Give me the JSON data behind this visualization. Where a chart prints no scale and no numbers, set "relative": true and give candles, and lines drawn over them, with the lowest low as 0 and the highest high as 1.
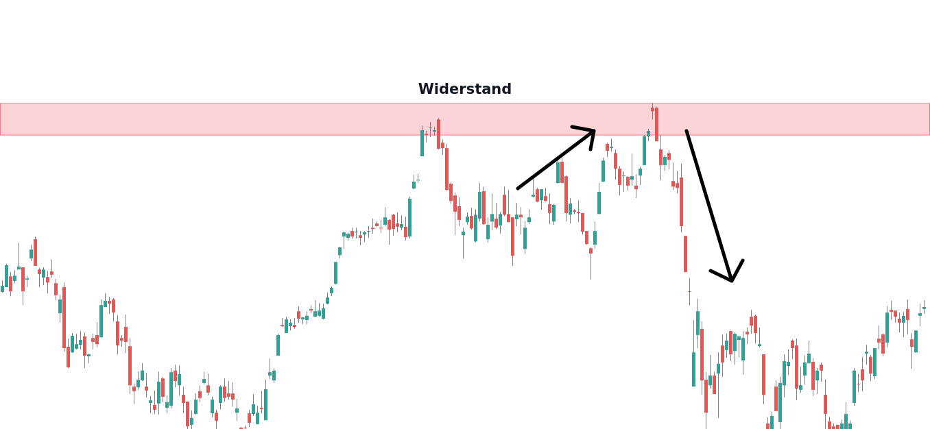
{
  "chart_data": {
    "type": "candlestick",
    "relative": true,
    "categories": [
      null,
      null,
      null,
      null,
      null,
      null,
      null,
      null,
      null,
      null,
      null,
      null,
      null,
      null,
      null,
      null,
      null,
      null,
      null,
      null,
      null,
      null,
      null,
      null,
      null,
      null,
      null,
      null,
      null,
      null,
      null,
      null,
      null,
      null,
      null,
      null,
      null,
      null,
      null,
      null,
      null,
      null,
      null,
      null,
      null,
      null,
      null,
      null,
      null,
      null,
      null,
      null,
      null,
      null,
      null,
      null,
      null,
      null,
      null,
      null,
      null,
      null,
      null,
      null,
      null,
      null,
      null,
      null,
      null,
      null,
      null,
      null,
      null,
      null,
      null,
      null,
      null,
      null,
      null,
      null,
      null,
      null,
      null,
      null,
      null,
      null,
      null,
      null,
      null,
      null,
      null,
      null,
      null,
      null,
      null,
      null,
      null,
      null,
      null,
      null,
      null,
      null,
      null,
      null,
      null,
      null,
      null,
      null,
      null,
      null,
      null,
      null,
      null,
      null,
      null,
      null,
      null,
      null,
      null,
      null,
      null,
      null,
      null,
      null,
      null,
      null,
      null,
      null,
      null,
      null,
      null,
      null,
      null,
      null,
      null,
      null,
      null,
      null,
      null,
      null,
      null,
      null,
      null,
      null,
      null,
      null,
      null,
      null,
      null,
      null,
      null,
      null,
      null,
      null,
      null,
      null,
      null,
      null,
      null,
      null,
      null,
      null,
      null,
      null,
      null,
      null,
      null,
      null,
      null,
      null,
      null,
      null,
      null,
      null,
      null,
      null,
      null,
      null,
      null,
      null,
      null,
      null,
      null,
      null,
      null,
      null,
      null,
      null,
      null,
      null,
      null,
      null,
      null,
      null,
      null,
      null,
      null,
      null,
      null,
      null,
      null,
      null,
      null,
      null,
      null,
      null,
      null,
      null,
      null,
      null,
      null,
      null,
      null,
      null,
      null,
      null,
      null,
      null,
      null,
      null,
      null,
      null,
      null,
      null,
      null
    ],
    "ohlc": [
      [
        0.42,
        0.456,
        0.418,
        0.439
      ],
      [
        0.435,
        0.506,
        0.435,
        0.502
      ],
      [
        0.468,
        0.481,
        0.407,
        0.422
      ],
      [
        0.454,
        0.487,
        0.447,
        0.47
      ],
      [
        0.489,
        0.571,
        0.489,
        0.498
      ],
      [
        0.496,
        0.496,
        0.38,
        0.422
      ],
      [
        0.458,
        0.47,
        0.435,
        0.462
      ],
      [
        0.523,
        0.565,
        0.515,
        0.55
      ],
      [
        0.582,
        0.59,
        0.5,
        0.5
      ],
      [
        0.489,
        0.494,
        0.435,
        0.475
      ],
      [
        0.464,
        0.496,
        0.441,
        0.489
      ],
      [
        0.466,
        0.485,
        0.416,
        0.449
      ],
      [
        0.483,
        0.519,
        0.464,
        0.473
      ],
      [
        0.447,
        0.46,
        0.395,
        0.41
      ],
      [
        0.355,
        0.412,
        0.326,
        0.397
      ],
      [
        0.435,
        0.449,
        0.237,
        0.248
      ],
      [
        0.252,
        0.277,
        0.187,
        0.189
      ],
      [
        0.235,
        0.294,
        0.233,
        0.286
      ],
      [
        0.246,
        0.292,
        0.244,
        0.26
      ],
      [
        0.258,
        0.3,
        0.244,
        0.273
      ],
      [
        0.284,
        0.296,
        0.187,
        0.225
      ],
      [
        0.223,
        0.231,
        0.202,
        0.229
      ],
      [
        0.279,
        0.292,
        0.244,
        0.267
      ],
      [
        0.288,
        0.328,
        0.25,
        0.26
      ],
      [
        0.281,
        0.397,
        0.281,
        0.38
      ],
      [
        0.374,
        0.416,
        0.374,
        0.393
      ],
      [
        0.393,
        0.405,
        0.353,
        0.384
      ],
      [
        0.397,
        0.401,
        0.33,
        0.357
      ],
      [
        0.33,
        0.349,
        0.229,
        0.256
      ],
      [
        0.279,
        0.288,
        0.252,
        0.271
      ],
      [
        0.313,
        0.351,
        0.233,
        0.267
      ],
      [
        0.254,
        0.279,
        0.107,
        0.134
      ],
      [
        0.13,
        0.139,
        0.076,
        0.116
      ],
      [
        0.128,
        0.176,
        0.12,
        0.151
      ],
      [
        0.149,
        0.202,
        0.147,
        0.179
      ],
      [
        0.13,
        0.172,
        0.097,
        0.118
      ],
      [
        0.08,
        0.101,
        0.048,
        0.088
      ],
      [
        0.074,
        0.118,
        0.046,
        0.059
      ],
      [
        0.078,
        0.176,
        0.044,
        0.145
      ],
      [
        0.155,
        0.16,
        0.082,
        0.099
      ],
      [
        0.065,
        0.103,
        0.048,
        0.082
      ],
      [
        0.071,
        0.187,
        0.063,
        0.174
      ],
      [
        0.179,
        0.197,
        0.128,
        0.147
      ],
      [
        0.134,
        0.195,
        0.103,
        0.168
      ],
      [
        0.105,
        0.13,
        0.048,
        0.08
      ],
      [
        0.084,
        0.084,
        0,
        0.008
      ],
      [
        0.013,
        0.057,
        0,
        0.034
      ],
      [
        0.046,
        0.109,
        0.044,
        0.09
      ],
      [
        0.116,
        0.134,
        0.082,
        0.095
      ],
      [
        0.141,
        0.176,
        0.137,
        0.153
      ],
      [
        0.134,
        0.17,
        0.103,
        0.111
      ],
      [
        0.048,
        0.099,
        0.036,
        0.09
      ],
      [
        0.05,
        0.059,
        0,
        0.025
      ],
      [
        0.08,
        0.134,
        0.061,
        0.13
      ],
      [
        0.13,
        0.155,
        0.084,
        0.095
      ],
      [
        0.109,
        0.147,
        0.09,
        0.099
      ],
      [
        0.109,
        0.143,
        0.069,
        0.09
      ],
      [
        0.05,
        0.092,
        0.025,
        0.063
      ],
      [
        0.004,
        0.006,
        0,
        0
      ],
      [
        0.004,
        0.011,
        0,
        0.002
      ],
      [
        0.048,
        0.059,
        0.006,
        0.019
      ],
      [
        0.046,
        0.107,
        0.04,
        0.076
      ],
      [
        0.015,
        0.071,
        0.015,
        0.05
      ],
      [
        0.065,
        0.116,
        0.048,
        0.061
      ],
      [
        0.027,
        0.151,
        0.027,
        0.122
      ],
      [
        0.164,
        0.216,
        0.153,
        0.174
      ],
      [
        0.149,
        0.187,
        0.141,
        0.179
      ],
      [
        0.225,
        0.292,
        0.225,
        0.288
      ],
      [
        0.319,
        0.34,
        0.313,
        0.315
      ],
      [
        0.294,
        0.344,
        0.294,
        0.336
      ],
      [
        0.315,
        0.336,
        0.302,
        0.326
      ],
      [
        0.319,
        0.34,
        0.307,
        0.313
      ],
      [
        0.361,
        0.376,
        0.326,
        0.338
      ],
      [
        0.336,
        0.344,
        0.321,
        0.342
      ],
      [
        0.334,
        0.361,
        0.321,
        0.347
      ],
      [
        0.368,
        0.38,
        0.355,
        0.363
      ],
      [
        0.344,
        0.395,
        0.344,
        0.361
      ],
      [
        0.347,
        0.386,
        0.344,
        0.363
      ],
      [
        0.338,
        0.384,
        0.336,
        0.37
      ],
      [
        0.384,
        0.418,
        0.382,
        0.403
      ],
      [
        0.416,
        0.437,
        0.407,
        0.433
      ],
      [
        0.445,
        0.512,
        0.443,
        0.512
      ],
      [
        0.533,
        0.559,
        0.523,
        0.557
      ],
      [
        0.59,
        0.605,
        0.552,
        0.603
      ],
      [
        0.586,
        0.601,
        0.578,
        0.599
      ],
      [
        0.607,
        0.617,
        0.584,
        0.59
      ],
      [
        0.603,
        0.617,
        0.584,
        0.605
      ],
      [
        0.594,
        0.607,
        0.563,
        0.586
      ],
      [
        0.596,
        0.607,
        0.573,
        0.603
      ],
      [
        0.605,
        0.622,
        0.586,
        0.607
      ],
      [
        0.617,
        0.645,
        0.599,
        0.613
      ],
      [
        0.63,
        0.636,
        0.62,
        0.622
      ],
      [
        0.617,
        0.641,
        0.601,
        0.615
      ],
      [
        0.626,
        0.68,
        0.622,
        0.649
      ],
      [
        0.641,
        0.643,
        0.565,
        0.611
      ],
      [
        0.657,
        0.659,
        0.592,
        0.613
      ],
      [
        0.63,
        0.664,
        0.603,
        0.62
      ],
      [
        0.617,
        0.655,
        0.609,
        0.628
      ],
      [
        0.62,
        0.651,
        0.578,
        0.588
      ],
      [
        0.59,
        0.712,
        0.584,
        0.706
      ],
      [
        0.737,
        0.779,
        0.735,
        0.758
      ],
      [
        0.762,
        0.783,
        0.754,
        0.764
      ],
      [
        0.836,
        0.93,
        0.836,
        0.916
      ],
      [
        0.905,
        0.914,
        0.878,
        0.901
      ],
      [
        0.922,
        0.941,
        0.895,
        0.924
      ],
      [
        0.911,
        0.926,
        0.899,
        0.916
      ],
      [
        0.949,
        0.953,
        0.857,
        0.859
      ],
      [
        0.878,
        0.888,
        0.84,
        0.861
      ],
      [
        0.861,
        0.874,
        0.731,
        0.733
      ],
      [
        0.752,
        0.756,
        0.691,
        0.699
      ],
      [
        0.716,
        0.725,
        0.594,
        0.666
      ],
      [
        0.683,
        0.71,
        0.622,
        0.641
      ],
      [
        0.594,
        0.617,
        0.523,
        0.605
      ],
      [
        0.634,
        0.664,
        0.626,
        0.651
      ],
      [
        0.653,
        0.678,
        0.611,
        0.615
      ],
      [
        0.575,
        0.674,
        0.573,
        0.657
      ],
      [
        0.645,
        0.754,
        0.636,
        0.727
      ],
      [
        0.729,
        0.743,
        0.626,
        0.628
      ],
      [
        0.582,
        0.649,
        0.571,
        0.626
      ],
      [
        0.636,
        0.722,
        0.609,
        0.659
      ],
      [
        0.645,
        0.693,
        0.613,
        0.617
      ],
      [
        0.624,
        0.666,
        0.599,
        0.659
      ],
      [
        0.718,
        0.743,
        0.653,
        0.657
      ],
      [
        0.659,
        0.733,
        0.634,
        0.634
      ],
      [
        0.649,
        0.649,
        0.5,
        0.531
      ],
      [
        0.643,
        0.693,
        0.622,
        0.657
      ],
      [
        0.657,
        0.68,
        0.596,
        0.649
      ],
      [
        0.552,
        0.638,
        0.536,
        0.617
      ],
      [
        0.634,
        0.674,
        0.628,
        0.649
      ],
      [
        0.712,
        0.773,
        0.71,
        0.718
      ],
      [
        0.735,
        0.739,
        0.695,
        0.697
      ],
      [
        0.701,
        0.735,
        0.672,
        0.735
      ],
      [
        0.714,
        0.739,
        0.697,
        0.699
      ],
      [
        0.689,
        0.722,
        0.628,
        0.662
      ],
      [
        0.636,
        0.689,
        0.626,
        0.687
      ],
      [
        0.754,
        0.827,
        0.752,
        0.817
      ],
      [
        0.819,
        0.832,
        0.754,
        0.754
      ],
      [
        0.775,
        0.777,
        0.636,
        0.662
      ],
      [
        0.657,
        0.708,
        0.63,
        0.691
      ],
      [
        0.67,
        0.674,
        0.659,
        0.666
      ],
      [
        0.666,
        0.701,
        0.634,
        0.662
      ],
      [
        0.662,
        0.662,
        0.596,
        0.605
      ],
      [
        0.607,
        0.607,
        0.565,
        0.567
      ],
      [
        0.554,
        0.557,
        0.458,
        0.538
      ],
      [
        0.565,
        0.636,
        0.552,
        0.607
      ],
      [
        0.659,
        0.754,
        0.659,
        0.727
      ],
      [
        0.758,
        0.832,
        0.758,
        0.823
      ],
      [
        0.874,
        0.878,
        0.834,
        0.853
      ],
      [
        0.861,
        0.89,
        0.851,
        0.865
      ],
      [
        0.846,
        0.857,
        0.764,
        0.798
      ],
      [
        0.798,
        0.806,
        0.716,
        0.748
      ],
      [
        0.775,
        0.79,
        0.727,
        0.777
      ],
      [
        0.773,
        0.775,
        0.731,
        0.746
      ],
      [
        0.764,
        0.844,
        0.746,
        0.775
      ],
      [
        0.746,
        0.781,
        0.708,
        0.735
      ],
      [
        0.777,
        0.804,
        0.748,
        0.798
      ],
      [
        0.809,
        0.901,
        0.809,
        0.897
      ],
      [
        0.897,
        0.92,
        0.882,
        0.914
      ],
      [
        0.985,
        1,
        0.949,
        0.974
      ],
      [
        0.985,
        0.987,
        0.882,
        0.882
      ],
      [
        0.857,
        0.901,
        0.762,
        0.809
      ],
      [
        0.809,
        0.84,
        0.792,
        0.834
      ],
      [
        0.846,
        0.855,
        0.796,
        0.825
      ],
      [
        0.76,
        0.817,
        0.733,
        0.743
      ],
      [
        0.754,
        0.792,
        0.722,
        0.739
      ],
      [
        0.771,
        0.813,
        0.603,
        0.622
      ],
      [
        0.592,
        0.592,
        0.481,
        0.481
      ],
      [
        0.422,
        0.462,
        0.38,
        0.42
      ],
      [
        0.13,
        0.334,
        0.13,
        0.235
      ],
      [
        0.288,
        0.399,
        0.248,
        0.361
      ],
      [
        0.307,
        0.33,
        0.105,
        0.149
      ],
      [
        0.151,
        0.174,
        0,
        0.05
      ],
      [
        0.134,
        0.227,
        0.124,
        0.164
      ],
      [
        0.164,
        0.176,
        0.107,
        0.107
      ],
      [
        0.17,
        0.235,
        0.034,
        0.2
      ],
      [
        0.256,
        0.29,
        0.16,
        0.204
      ],
      [
        0.242,
        0.292,
        0.218,
        0.271
      ],
      [
        0.3,
        0.302,
        0.208,
        0.229
      ],
      [
        0.239,
        0.296,
        0.197,
        0.292
      ],
      [
        0.273,
        0.286,
        0.221,
        0.284
      ],
      [
        0.21,
        0.3,
        0.166,
        0.279
      ],
      [
        0.298,
        0.311,
        0.26,
        0.29
      ],
      [
        0.344,
        0.365,
        0.292,
        0.317
      ],
      [
        0.347,
        0.351,
        0.263,
        0.294
      ],
      [
        0.254,
        0.311,
        0.25,
        0.26
      ],
      [
        0.229,
        0.229,
        0.076,
        0.105
      ],
      [
        0.017,
        0.036,
        0,
        0
      ],
      [
        0,
        0.053,
        0,
        0.04
      ],
      [
        0.13,
        0.149,
        0.055,
        0.055
      ],
      [
        0.021,
        0.16,
        0,
        0.141
      ],
      [
        0.134,
        0.229,
        0.097,
        0.208
      ],
      [
        0.193,
        0.244,
        0.166,
        0.206
      ],
      [
        0.271,
        0.275,
        0.214,
        0.248
      ],
      [
        0.256,
        0.277,
        0.088,
        0.124
      ],
      [
        0.12,
        0.191,
        0.111,
        0.134
      ],
      [
        0.164,
        0.225,
        0.137,
        0.204
      ],
      [
        0.202,
        0.271,
        0.2,
        0.231
      ],
      [
        0.206,
        0.218,
        0.101,
        0.12
      ],
      [
        0.149,
        0.187,
        0.107,
        0.179
      ],
      [
        0.197,
        0.204,
        0.145,
        0.179
      ],
      [
        0.105,
        0.153,
        0,
        0.046
      ],
      [
        0.023,
        0.038,
        0,
        0
      ],
      [
        0.008,
        0.017,
        0,
        0
      ],
      [
        0.013,
        0.013,
        0,
        0
      ],
      [
        0,
        0.029,
        0,
        0.017
      ],
      [
        0,
        0.082,
        0,
        0.046
      ],
      [
        0,
        0.027,
        0,
        0.017
      ],
      [
        0.08,
        0.187,
        0.071,
        0.179
      ],
      [
        0.139,
        0.17,
        0.113,
        0.137
      ],
      [
        0.183,
        0.221,
        0.116,
        0.149
      ],
      [
        0.231,
        0.258,
        0.197,
        0.237
      ],
      [
        0.221,
        0.227,
        0.147,
        0.17
      ],
      [
        0.162,
        0.248,
        0.153,
        0.248
      ],
      [
        0.277,
        0.317,
        0.244,
        0.265
      ],
      [
        0.29,
        0.294,
        0.223,
        0.231
      ],
      [
        0.265,
        0.376,
        0.25,
        0.357
      ],
      [
        0.365,
        0.393,
        0.334,
        0.359
      ],
      [
        0.363,
        0.363,
        0.326,
        0.344
      ],
      [
        0.338,
        0.357,
        0.296,
        0.326
      ],
      [
        0.326,
        0.359,
        0.282,
        0.347
      ],
      [
        0.368,
        0.397,
        0.29,
        0.334
      ],
      [
        0.275,
        0.294,
        0.185,
        0.252
      ],
      [
        0.235,
        0.302,
        0.233,
        0.302
      ],
      [
        0.347,
        0.384,
        0.315,
        0.355
      ],
      [
        0.368,
        0.395,
        0.353,
        0.374
      ]
    ],
    "bands": [
      {
        "axis": "y",
        "from": 0.901,
        "to": 0.998,
        "label": "Widerstand",
        "color": "#fcd4d8"
      }
    ]
  }
}
